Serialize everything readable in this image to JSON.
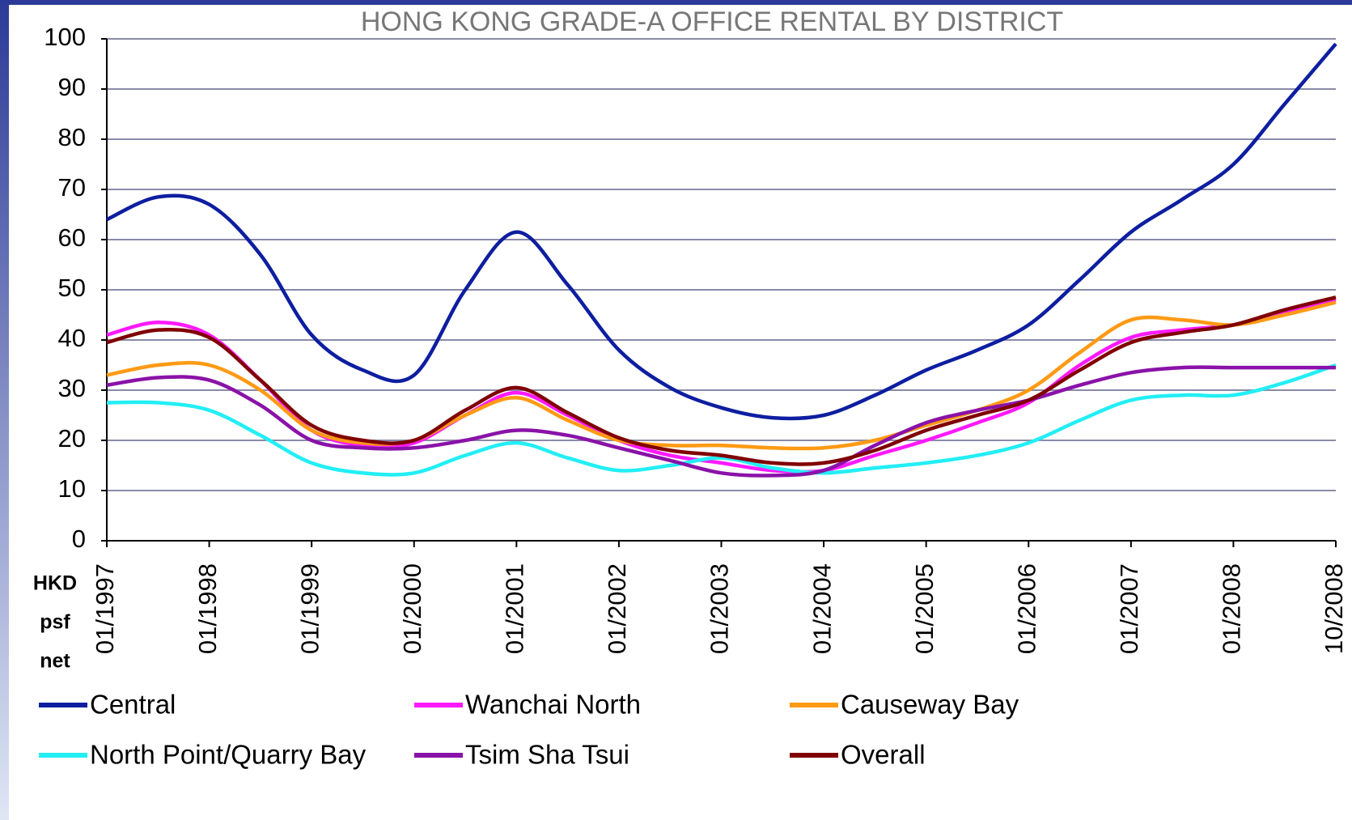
{
  "chart_data": {
    "type": "line",
    "title": "HONG KONG GRADE-A OFFICE RENTAL BY DISTRICT",
    "y_label_lines": [
      "HKD",
      "psf",
      "net"
    ],
    "categories": [
      "01/1997",
      null,
      "01/1998",
      null,
      "01/1999",
      null,
      "01/2000",
      null,
      "01/2001",
      null,
      "01/2002",
      null,
      "01/2003",
      null,
      "01/2004",
      null,
      "01/2005",
      null,
      "01/2006",
      null,
      "01/2007",
      null,
      "01/2008",
      null,
      "10/2008"
    ],
    "ylim": [
      0,
      100
    ],
    "yticks": [
      0,
      10,
      20,
      30,
      40,
      50,
      60,
      70,
      80,
      90,
      100
    ],
    "grid": true,
    "series": [
      {
        "name": "Central",
        "color": "#0d1ea0",
        "values": [
          64,
          68.5,
          67,
          57,
          41,
          34,
          33,
          50,
          61.5,
          51,
          38,
          30.5,
          26.5,
          24.5,
          25,
          29,
          34,
          38,
          43,
          52,
          61.5,
          68,
          75,
          87,
          99
        ]
      },
      {
        "name": "Wanchai North",
        "color": "#ff19ff",
        "values": [
          41,
          43.5,
          41,
          32,
          22,
          19,
          19.5,
          25,
          29.5,
          25,
          20,
          17,
          15.5,
          14,
          14,
          17,
          20,
          23.5,
          27.5,
          35,
          40.5,
          42,
          43,
          45.5,
          48
        ]
      },
      {
        "name": "Causeway Bay",
        "color": "#ff9a14",
        "values": [
          33,
          35,
          35,
          30,
          22,
          19.5,
          20,
          25,
          28.5,
          24,
          20,
          19,
          19,
          18.5,
          18.5,
          20,
          23,
          26,
          30,
          37.5,
          44,
          44,
          43,
          45,
          47.5
        ]
      },
      {
        "name": "North Point/Quarry Bay",
        "color": "#22eef5",
        "values": [
          27.5,
          27.5,
          26,
          21,
          15.5,
          13.5,
          13.5,
          17,
          19.5,
          16.5,
          14,
          15,
          16.5,
          14.5,
          13.5,
          14.5,
          15.5,
          17,
          19.5,
          24,
          28,
          29,
          29,
          31.5,
          35
        ]
      },
      {
        "name": "Tsim Sha Tsui",
        "color": "#8a12a8",
        "values": [
          31,
          32.5,
          32,
          27,
          20,
          18.5,
          18.5,
          20,
          22,
          21,
          18.5,
          16,
          13.5,
          13,
          14,
          19,
          23.5,
          26,
          28,
          31,
          33.5,
          34.5,
          34.5,
          34.5,
          34.5
        ]
      },
      {
        "name": "Overall",
        "color": "#800000",
        "values": [
          39.5,
          42,
          40.5,
          32,
          23,
          20,
          20,
          26,
          30.5,
          25.5,
          20.5,
          18,
          17,
          15.5,
          15.5,
          18,
          22,
          25,
          28,
          34,
          39.5,
          41.5,
          43,
          46,
          48.5
        ]
      }
    ]
  }
}
